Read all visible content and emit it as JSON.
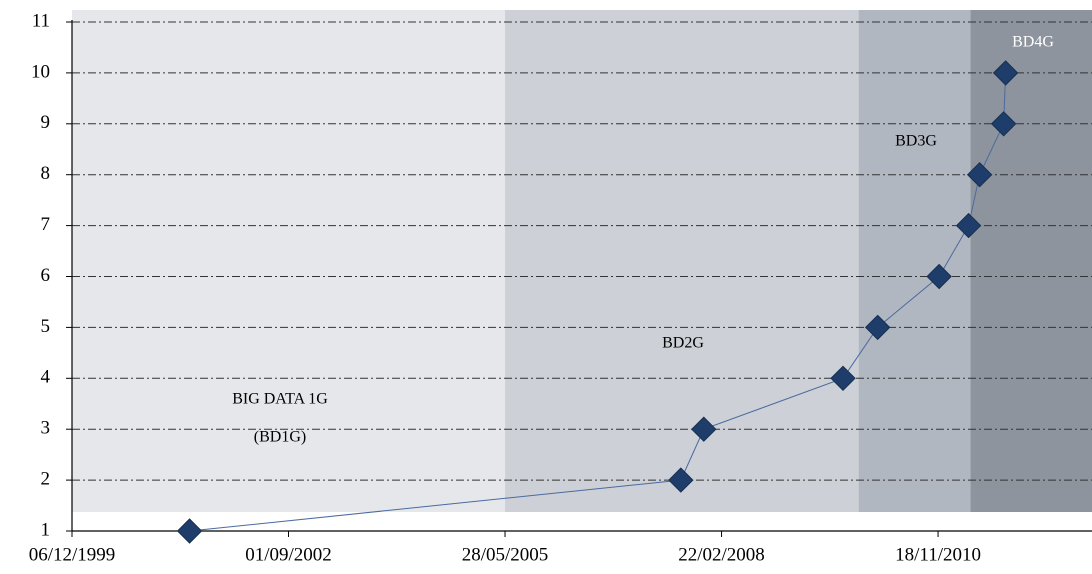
{
  "chart_data": {
    "type": "line",
    "x": [
      "2001-06-01",
      "2007-08-18",
      "2007-12-02",
      "2009-09-05",
      "2010-02-12",
      "2010-11-23",
      "2011-04-08",
      "2011-05-29",
      "2011-09-17",
      "2011-09-26"
    ],
    "values": [
      1,
      2,
      3,
      4,
      5,
      6,
      7,
      8,
      9,
      10
    ],
    "color": "#1f3d6b",
    "line_color": "#4a6aa0",
    "xlim": [
      "1999-12-06",
      "2012-10-29"
    ],
    "xticks": [
      {
        "value": "1999-12-06",
        "label": "06/12/1999"
      },
      {
        "value": "2002-09-01",
        "label": "01/09/2002"
      },
      {
        "value": "2005-05-28",
        "label": "28/05/2005"
      },
      {
        "value": "2008-02-22",
        "label": "22/02/2008"
      },
      {
        "value": "2010-11-18",
        "label": "18/11/2010"
      }
    ],
    "ylim": [
      1,
      11
    ],
    "yticks": [
      1,
      2,
      3,
      4,
      5,
      6,
      7,
      8,
      9,
      10,
      11
    ],
    "grid": true,
    "regions": [
      {
        "start": "1999-12-06",
        "end": "2005-05-28",
        "color": "#e6e7ea",
        "labels": [
          "BIG DATA 1G",
          "(BD1G)"
        ],
        "label_color": "#000000"
      },
      {
        "start": "2005-05-28",
        "end": "2009-11-16",
        "color": "#cdd0d6",
        "labels": [
          "BD2G"
        ],
        "label_color": "#000000"
      },
      {
        "start": "2009-11-16",
        "end": "2011-04-17",
        "color": "#b1b7c1",
        "labels": [
          "BD3G"
        ],
        "label_color": "#000000"
      },
      {
        "start": "2011-04-17",
        "end": "2012-10-29",
        "color": "#8e949e",
        "labels": [
          "BD4G"
        ],
        "label_color": "#ffffff"
      }
    ]
  }
}
